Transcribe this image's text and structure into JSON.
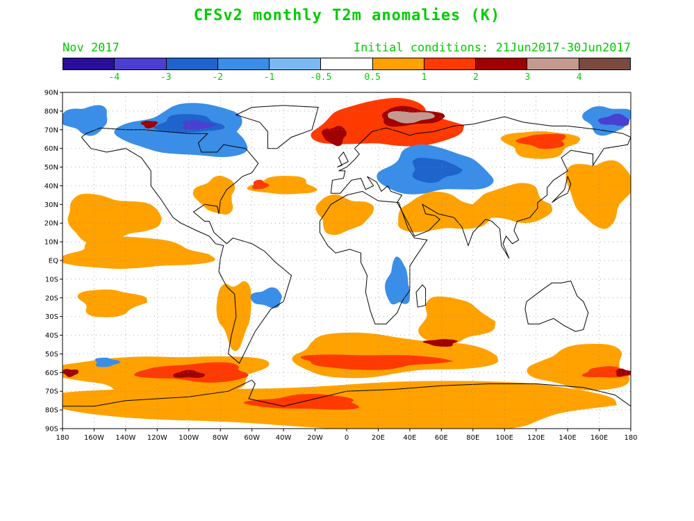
{
  "header": {
    "title": "CFSv2 monthly T2m anomalies (K)",
    "month": "Nov 2017",
    "initial_conditions": "Initial conditions: 21Jun2017-30Jun2017",
    "text_color": "#00cc00"
  },
  "colorbar": {
    "colors": [
      "#2a0d9a",
      "#4a3fd0",
      "#1e64cc",
      "#3a8ee8",
      "#7ab8f4",
      "#ffffff",
      "#ffa200",
      "#ff3a00",
      "#a00000",
      "#c49a90",
      "#7a4a40"
    ],
    "labels": [
      "-4",
      "-3",
      "-2",
      "-1",
      "-0.5",
      "0.5",
      "1",
      "2",
      "3",
      "4"
    ]
  },
  "map": {
    "lat_labels": [
      "90N",
      "80N",
      "70N",
      "60N",
      "50N",
      "40N",
      "30N",
      "20N",
      "10N",
      "EQ",
      "10S",
      "20S",
      "30S",
      "40S",
      "50S",
      "60S",
      "70S",
      "80S",
      "90S"
    ],
    "lon_labels": [
      "180",
      "160W",
      "140W",
      "120W",
      "100W",
      "80W",
      "60W",
      "40W",
      "20W",
      "0",
      "20E",
      "40E",
      "60E",
      "80E",
      "100E",
      "120E",
      "140E",
      "160E",
      "180"
    ],
    "regions": [
      {
        "name": "arctic-north-atlantic-warm",
        "lon": [
          -20,
          70
        ],
        "lat": [
          60,
          85
        ],
        "level": 2
      },
      {
        "name": "barents-kara-hot",
        "lon": [
          20,
          60
        ],
        "lat": [
          72,
          82
        ],
        "level": 3
      },
      {
        "name": "barents-kara-core",
        "lon": [
          25,
          55
        ],
        "lat": [
          74,
          80
        ],
        "level": 4
      },
      {
        "name": "norwegian-sea-hot",
        "lon": [
          -15,
          0
        ],
        "lat": [
          62,
          72
        ],
        "level": 3
      },
      {
        "name": "canada-cold",
        "lon": [
          -140,
          -60
        ],
        "lat": [
          55,
          83
        ],
        "level": -1
      },
      {
        "name": "canada-arctic-cold-core",
        "lon": [
          -120,
          -80
        ],
        "lat": [
          68,
          78
        ],
        "level": -2
      },
      {
        "name": "canada-arctic-coldest",
        "lon": [
          -105,
          -85
        ],
        "lat": [
          70,
          75
        ],
        "level": -3
      },
      {
        "name": "bering-cold",
        "lon": [
          150,
          180
        ],
        "lat": [
          68,
          83
        ],
        "level": -1
      },
      {
        "name": "bering-cold-west",
        "lon": [
          -180,
          -150
        ],
        "lat": [
          68,
          83
        ],
        "level": -1
      },
      {
        "name": "siberia-east-cold-core",
        "lon": [
          160,
          180
        ],
        "lat": [
          72,
          78
        ],
        "level": -3
      },
      {
        "name": "central-asia-cold",
        "lon": [
          20,
          90
        ],
        "lat": [
          35,
          60
        ],
        "level": -1
      },
      {
        "name": "central-asia-cold-core",
        "lon": [
          40,
          70
        ],
        "lat": [
          42,
          55
        ],
        "level": -2
      },
      {
        "name": "east-siberia-warm",
        "lon": [
          100,
          145
        ],
        "lat": [
          55,
          70
        ],
        "level": 1
      },
      {
        "name": "east-siberia-hot",
        "lon": [
          110,
          140
        ],
        "lat": [
          60,
          68
        ],
        "level": 2
      },
      {
        "name": "china-warm",
        "lon": [
          80,
          130
        ],
        "lat": [
          20,
          40
        ],
        "level": 1
      },
      {
        "name": "india-middle-east-warm",
        "lon": [
          30,
          90
        ],
        "lat": [
          15,
          35
        ],
        "level": 1
      },
      {
        "name": "north-pacific-warm",
        "lon": [
          -180,
          -120
        ],
        "lat": [
          10,
          35
        ],
        "level": 1
      },
      {
        "name": "north-pacific-west-warm",
        "lon": [
          140,
          180
        ],
        "lat": [
          20,
          55
        ],
        "level": 1
      },
      {
        "name": "us-east-warm",
        "lon": [
          -95,
          -70
        ],
        "lat": [
          25,
          45
        ],
        "level": 1
      },
      {
        "name": "north-atlantic-warm",
        "lon": [
          -60,
          -20
        ],
        "lat": [
          35,
          45
        ],
        "level": 1
      },
      {
        "name": "north-atlantic-hot",
        "lon": [
          -60,
          -50
        ],
        "lat": [
          38,
          43
        ],
        "level": 2
      },
      {
        "name": "west-africa-warm",
        "lon": [
          -20,
          15
        ],
        "lat": [
          15,
          35
        ],
        "level": 1
      },
      {
        "name": "south-america-warm",
        "lon": [
          -82,
          -60
        ],
        "lat": [
          -45,
          -10
        ],
        "level": 1
      },
      {
        "name": "brazil-cool",
        "lon": [
          -60,
          -40
        ],
        "lat": [
          -25,
          -15
        ],
        "level": -1
      },
      {
        "name": "east-africa-cool",
        "lon": [
          25,
          40
        ],
        "lat": [
          -25,
          0
        ],
        "level": -1
      },
      {
        "name": "south-indian-warm",
        "lon": [
          45,
          90
        ],
        "lat": [
          -45,
          -20
        ],
        "level": 1
      },
      {
        "name": "south-pacific-warm",
        "lon": [
          -170,
          -130
        ],
        "lat": [
          -30,
          -15
        ],
        "level": 1
      },
      {
        "name": "southern-ocean-warm-east",
        "lon": [
          -180,
          -50
        ],
        "lat": [
          -72,
          -50
        ],
        "level": 1
      },
      {
        "name": "southern-ocean-hot-pacific",
        "lon": [
          -130,
          -60
        ],
        "lat": [
          -65,
          -55
        ],
        "level": 2
      },
      {
        "name": "southern-ocean-hottest",
        "lon": [
          -110,
          -90
        ],
        "lat": [
          -63,
          -59
        ],
        "level": 3
      },
      {
        "name": "southern-ocean-warm-atlantic",
        "lon": [
          -40,
          90
        ],
        "lat": [
          -62,
          -40
        ],
        "level": 1
      },
      {
        "name": "southern-ocean-hot-atlantic",
        "lon": [
          -30,
          60
        ],
        "lat": [
          -58,
          -50
        ],
        "level": 2
      },
      {
        "name": "southern-ocean-hot-indian",
        "lon": [
          50,
          70
        ],
        "lat": [
          -46,
          -42
        ],
        "level": 3
      },
      {
        "name": "southern-ocean-west-warm",
        "lon": [
          120,
          180
        ],
        "lat": [
          -70,
          -45
        ],
        "level": 1
      },
      {
        "name": "southern-ocean-west-hot",
        "lon": [
          150,
          180
        ],
        "lat": [
          -63,
          -57
        ],
        "level": 2
      },
      {
        "name": "dateline-south-hottest",
        "lon": [
          170,
          180
        ],
        "lat": [
          -62,
          -58
        ],
        "level": 3
      },
      {
        "name": "dateline-south-hottest-w",
        "lon": [
          -180,
          -170
        ],
        "lat": [
          -62,
          -58
        ],
        "level": 3
      },
      {
        "name": "antarctica-warm",
        "lon": [
          -180,
          180
        ],
        "lat": [
          -90,
          -65
        ],
        "level": 1
      },
      {
        "name": "antarctica-coast-hot",
        "lon": [
          -60,
          10
        ],
        "lat": [
          -80,
          -72
        ],
        "level": 2
      },
      {
        "name": "east-pacific-warm",
        "lon": [
          -180,
          -90
        ],
        "lat": [
          -5,
          12
        ],
        "level": 1
      },
      {
        "name": "south-pacific-east-cool",
        "lon": [
          -160,
          -145
        ],
        "lat": [
          -57,
          -52
        ],
        "level": -1
      },
      {
        "name": "alaska-hot",
        "lon": [
          -130,
          -120
        ],
        "lat": [
          71,
          75
        ],
        "level": 3
      }
    ]
  }
}
